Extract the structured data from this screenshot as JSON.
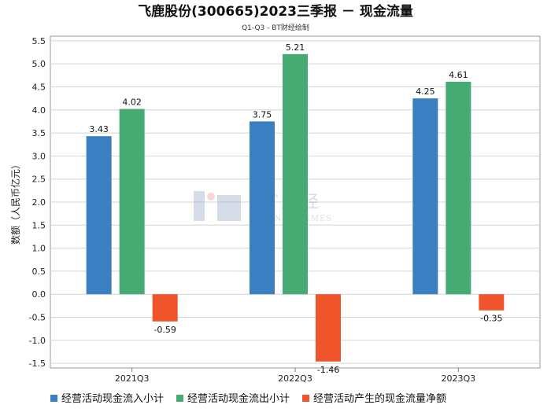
{
  "chart_data": {
    "type": "bar",
    "title": "飞鹿股份(300665)2023三季报 － 现金流量",
    "subtitle": "Q1-Q3 - BT财经绘制",
    "ylabel": "数额（人民币亿元）",
    "xlabel": "",
    "categories": [
      "2021Q3",
      "2022Q3",
      "2023Q3"
    ],
    "ylim": [
      -1.6,
      5.6
    ],
    "yticks": [
      "5.5",
      "5.0",
      "4.5",
      "4.0",
      "3.5",
      "3.0",
      "2.5",
      "2.0",
      "1.5",
      "1.0",
      "0.5",
      "0.0",
      "-0.5",
      "-1.0",
      "-1.5"
    ],
    "grid": true,
    "legend_position": "bottom",
    "series": [
      {
        "name": "经营活动现金流入小计",
        "color": "#3a7fc1",
        "values": [
          3.43,
          3.75,
          4.25
        ],
        "labels": [
          "3.43",
          "3.75",
          "4.25"
        ]
      },
      {
        "name": "经营活动现金流出小计",
        "color": "#45ab72",
        "values": [
          4.02,
          5.21,
          4.61
        ],
        "labels": [
          "4.02",
          "5.21",
          "4.61"
        ]
      },
      {
        "name": "经营活动产生的现金流量净额",
        "color": "#f0542a",
        "values": [
          -0.59,
          -1.46,
          -0.35
        ],
        "labels": [
          "-0.59",
          "-1.46",
          "-0.35"
        ]
      }
    ]
  },
  "watermark": {
    "main": "BT财经",
    "sub": "BUSINESSTIMES",
    "color": "#8a9cc0"
  }
}
